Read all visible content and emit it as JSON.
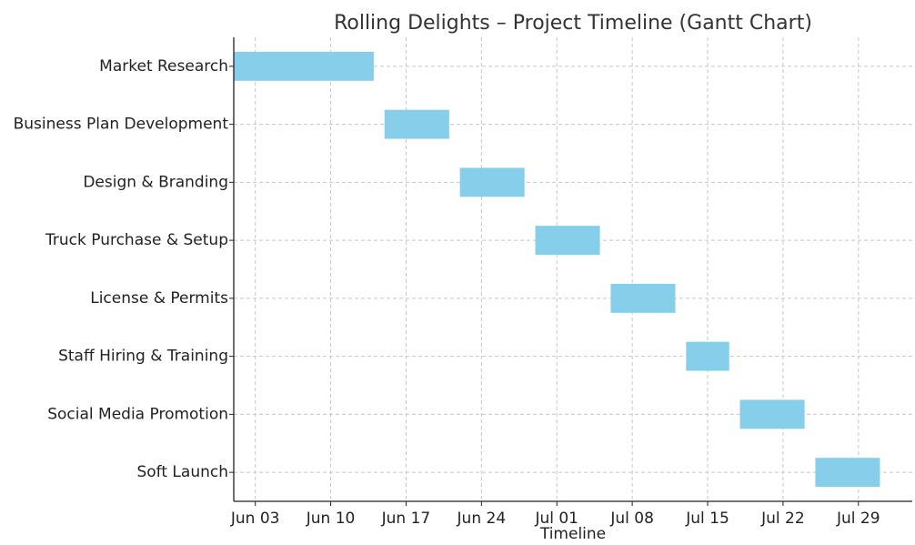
{
  "chart_data": {
    "type": "gantt",
    "title": "Rolling Delights – Project Timeline (Gantt Chart)",
    "xlabel": "Timeline",
    "ylabel": "",
    "x_ticks": [
      "Jun 03",
      "Jun 10",
      "Jun 17",
      "Jun 24",
      "Jul 01",
      "Jul 08",
      "Jul 15",
      "Jul 22",
      "Jul 29"
    ],
    "x_tick_dates": [
      "2024-06-03",
      "2024-06-10",
      "2024-06-17",
      "2024-06-24",
      "2024-07-01",
      "2024-07-08",
      "2024-07-15",
      "2024-07-22",
      "2024-07-29"
    ],
    "xlim": [
      "2024-06-01",
      "2024-08-03"
    ],
    "grid": true,
    "bar_color": "#87CEEB",
    "tasks": [
      {
        "name": "Market Research",
        "start": "2024-06-01",
        "end": "2024-06-14"
      },
      {
        "name": "Business Plan Development",
        "start": "2024-06-15",
        "end": "2024-06-21"
      },
      {
        "name": "Design & Branding",
        "start": "2024-06-22",
        "end": "2024-06-28"
      },
      {
        "name": "Truck Purchase & Setup",
        "start": "2024-06-29",
        "end": "2024-07-05"
      },
      {
        "name": "License & Permits",
        "start": "2024-07-06",
        "end": "2024-07-12"
      },
      {
        "name": "Staff Hiring & Training",
        "start": "2024-07-13",
        "end": "2024-07-17"
      },
      {
        "name": "Social Media Promotion",
        "start": "2024-07-18",
        "end": "2024-07-24"
      },
      {
        "name": "Soft Launch",
        "start": "2024-07-25",
        "end": "2024-07-31"
      }
    ]
  }
}
